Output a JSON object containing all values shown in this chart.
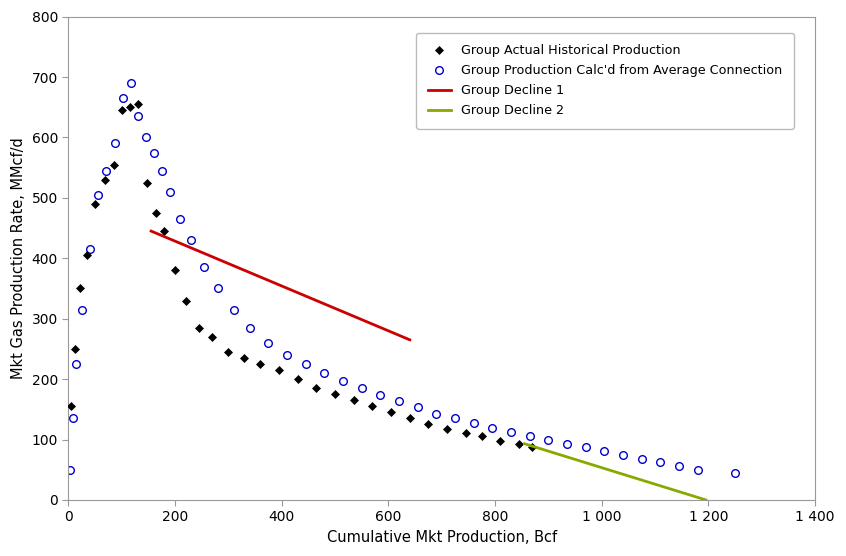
{
  "title": "",
  "xlabel": "Cumulative Mkt Production, Bcf",
  "ylabel": "Mkt Gas Production Rate, MMcf/d",
  "xlim": [
    0,
    1400
  ],
  "ylim": [
    0,
    800
  ],
  "xticks": [
    0,
    200,
    400,
    600,
    800,
    1000,
    1200,
    1400
  ],
  "yticks": [
    0,
    100,
    200,
    300,
    400,
    500,
    600,
    700,
    800
  ],
  "background_color": "#ffffff",
  "actual_x": [
    5,
    12,
    22,
    35,
    50,
    68,
    85,
    100,
    115,
    130,
    148,
    165,
    180,
    200,
    220,
    245,
    270,
    300,
    330,
    360,
    395,
    430,
    465,
    500,
    535,
    570,
    605,
    640,
    675,
    710,
    745,
    775,
    810,
    845,
    870
  ],
  "actual_y": [
    155,
    250,
    350,
    405,
    490,
    530,
    555,
    645,
    650,
    655,
    525,
    475,
    445,
    380,
    330,
    285,
    270,
    245,
    235,
    225,
    215,
    200,
    185,
    175,
    165,
    155,
    145,
    135,
    125,
    118,
    110,
    105,
    98,
    92,
    88
  ],
  "calc_x": [
    3,
    8,
    15,
    25,
    40,
    55,
    70,
    88,
    102,
    118,
    130,
    145,
    160,
    175,
    190,
    210,
    230,
    255,
    280,
    310,
    340,
    375,
    410,
    445,
    480,
    515,
    550,
    585,
    620,
    655,
    690,
    725,
    760,
    795,
    830,
    865,
    900,
    935,
    970,
    1005,
    1040,
    1075,
    1110,
    1145,
    1180,
    1250
  ],
  "calc_y": [
    50,
    135,
    225,
    315,
    415,
    505,
    545,
    590,
    665,
    690,
    635,
    600,
    575,
    545,
    510,
    465,
    430,
    385,
    350,
    315,
    285,
    260,
    240,
    225,
    210,
    197,
    185,
    173,
    163,
    153,
    143,
    135,
    127,
    119,
    112,
    105,
    99,
    93,
    87,
    81,
    75,
    68,
    62,
    56,
    50,
    45
  ],
  "decline1_x": [
    155,
    640
  ],
  "decline1_y": [
    445,
    265
  ],
  "decline2_x": [
    855,
    1195
  ],
  "decline2_y": [
    93,
    0
  ],
  "legend_entries": [
    "Group Actual Historical Production",
    "Group Production Calc'd from Average Connection",
    "Group Decline 1",
    "Group Decline 2"
  ],
  "actual_color": "#000000",
  "calc_color": "#0000cc",
  "decline1_color": "#cc0000",
  "decline2_color": "#88aa00",
  "fontsize_labels": 10.5,
  "fontsize_ticks": 10
}
